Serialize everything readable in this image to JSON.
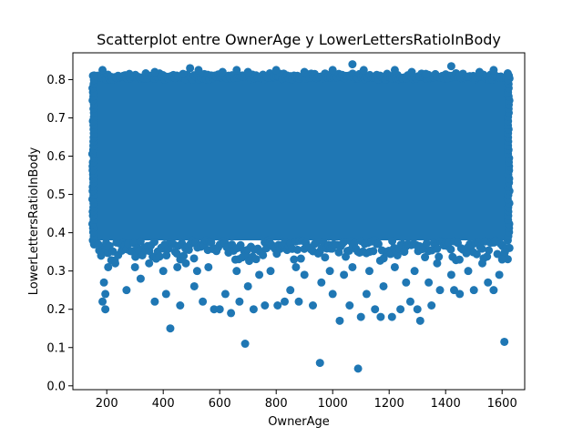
{
  "chart_data": {
    "type": "scatter",
    "title": "Scatterplot entre OwnerAge y LowerLettersRatioInBody",
    "xlabel": "OwnerAge",
    "ylabel": "LowerLettersRatioInBody",
    "xlim": [
      80,
      1680
    ],
    "ylim": [
      -0.01,
      0.87
    ],
    "xticks": [
      200,
      400,
      600,
      800,
      1000,
      1200,
      1400,
      1600
    ],
    "yticks": [
      0.0,
      0.1,
      0.2,
      0.3,
      0.4,
      0.5,
      0.6,
      0.7,
      0.8
    ],
    "xtick_labels": [
      "200",
      "400",
      "600",
      "800",
      "1000",
      "1200",
      "1400",
      "1600"
    ],
    "ytick_labels": [
      "0.0",
      "0.1",
      "0.2",
      "0.3",
      "0.4",
      "0.5",
      "0.6",
      "0.7",
      "0.8"
    ],
    "grid": false,
    "marker_color": "#1f77b4",
    "series": [
      {
        "dense_region": {
          "x": [
            155,
            1620
          ],
          "y": [
            0.38,
            0.81
          ]
        },
        "points": [
          [
            425,
            0.15
          ],
          [
            690,
            0.11
          ],
          [
            955,
            0.06
          ],
          [
            1090,
            0.045
          ],
          [
            1608,
            0.115
          ],
          [
            185,
            0.22
          ],
          [
            195,
            0.2
          ],
          [
            190,
            0.27
          ],
          [
            195,
            0.24
          ],
          [
            370,
            0.22
          ],
          [
            460,
            0.21
          ],
          [
            580,
            0.2
          ],
          [
            600,
            0.2
          ],
          [
            640,
            0.19
          ],
          [
            670,
            0.22
          ],
          [
            720,
            0.2
          ],
          [
            760,
            0.21
          ],
          [
            805,
            0.21
          ],
          [
            830,
            0.22
          ],
          [
            880,
            0.22
          ],
          [
            930,
            0.21
          ],
          [
            1000,
            0.24
          ],
          [
            1025,
            0.17
          ],
          [
            1060,
            0.21
          ],
          [
            1100,
            0.18
          ],
          [
            1120,
            0.24
          ],
          [
            1150,
            0.2
          ],
          [
            1170,
            0.18
          ],
          [
            1210,
            0.18
          ],
          [
            1240,
            0.2
          ],
          [
            1275,
            0.22
          ],
          [
            1300,
            0.2
          ],
          [
            1310,
            0.17
          ],
          [
            1350,
            0.21
          ],
          [
            1380,
            0.25
          ],
          [
            1430,
            0.25
          ],
          [
            1450,
            0.24
          ],
          [
            1500,
            0.25
          ],
          [
            1550,
            0.27
          ],
          [
            1590,
            0.29
          ],
          [
            270,
            0.25
          ],
          [
            320,
            0.28
          ],
          [
            410,
            0.24
          ],
          [
            510,
            0.26
          ],
          [
            540,
            0.22
          ],
          [
            620,
            0.24
          ],
          [
            700,
            0.26
          ],
          [
            850,
            0.25
          ],
          [
            960,
            0.27
          ],
          [
            1180,
            0.26
          ],
          [
            1260,
            0.27
          ],
          [
            1340,
            0.27
          ],
          [
            1480,
            0.3
          ],
          [
            1570,
            0.25
          ],
          [
            170,
            0.37
          ],
          [
            180,
            0.34
          ],
          [
            205,
            0.31
          ],
          [
            230,
            0.32
          ],
          [
            300,
            0.31
          ],
          [
            350,
            0.32
          ],
          [
            400,
            0.3
          ],
          [
            450,
            0.31
          ],
          [
            480,
            0.32
          ],
          [
            520,
            0.3
          ],
          [
            560,
            0.31
          ],
          [
            660,
            0.3
          ],
          [
            740,
            0.29
          ],
          [
            780,
            0.3
          ],
          [
            870,
            0.31
          ],
          [
            900,
            0.29
          ],
          [
            990,
            0.3
          ],
          [
            1040,
            0.29
          ],
          [
            1070,
            0.31
          ],
          [
            1130,
            0.3
          ],
          [
            1220,
            0.31
          ],
          [
            1290,
            0.3
          ],
          [
            1370,
            0.32
          ],
          [
            1420,
            0.29
          ],
          [
            1530,
            0.32
          ],
          [
            1600,
            0.33
          ],
          [
            1610,
            0.35
          ],
          [
            185,
            0.825
          ],
          [
            280,
            0.815
          ],
          [
            370,
            0.82
          ],
          [
            470,
            0.815
          ],
          [
            495,
            0.83
          ],
          [
            525,
            0.825
          ],
          [
            610,
            0.82
          ],
          [
            660,
            0.825
          ],
          [
            700,
            0.82
          ],
          [
            800,
            0.825
          ],
          [
            900,
            0.82
          ],
          [
            1000,
            0.825
          ],
          [
            1070,
            0.84
          ],
          [
            1110,
            0.825
          ],
          [
            1220,
            0.825
          ],
          [
            1280,
            0.82
          ],
          [
            1330,
            0.815
          ],
          [
            1420,
            0.835
          ],
          [
            1520,
            0.82
          ],
          [
            1570,
            0.825
          ]
        ]
      }
    ]
  }
}
